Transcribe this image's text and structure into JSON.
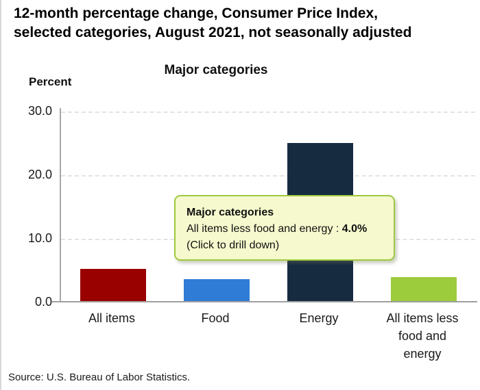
{
  "header": {
    "title": "12-month percentage change, Consumer Price Index,\nselected categories, August 2021, not seasonally adjusted"
  },
  "chart": {
    "subtitle": "Major categories",
    "axis_label": "Percent",
    "source": "Source: U.S. Bureau of Labor Statistics."
  },
  "tooltip": {
    "title": "Major categories",
    "series_label": "All items less food and energy : ",
    "value": "4.0%",
    "hint": "(Click to drill down)"
  },
  "chart_data": {
    "type": "bar",
    "title": "Major categories",
    "ylabel": "Percent",
    "categories": [
      "All items",
      "Food",
      "Energy",
      "All items less food and energy"
    ],
    "category_display": [
      "All items",
      "Food",
      "Energy",
      "All items less\nfood and\nenergy"
    ],
    "values": [
      5.3,
      3.7,
      25.0,
      4.0
    ],
    "bar_colors": [
      "#990000",
      "#2e7cd6",
      "#162a40",
      "#9ccb3b"
    ],
    "ylim": [
      0,
      30
    ],
    "yticks": [
      "0.0",
      "10.0",
      "20.0",
      "30.0"
    ],
    "gridlines_at": [
      10,
      20,
      30
    ],
    "grid": "horizontal-dashed",
    "legend": "none",
    "unit": "percent"
  },
  "colors": {
    "axis": "#9e9e9e",
    "gridline": "#e3e3e3",
    "tooltip_bg": "#f6f9cd",
    "tooltip_border": "#9fc840"
  }
}
